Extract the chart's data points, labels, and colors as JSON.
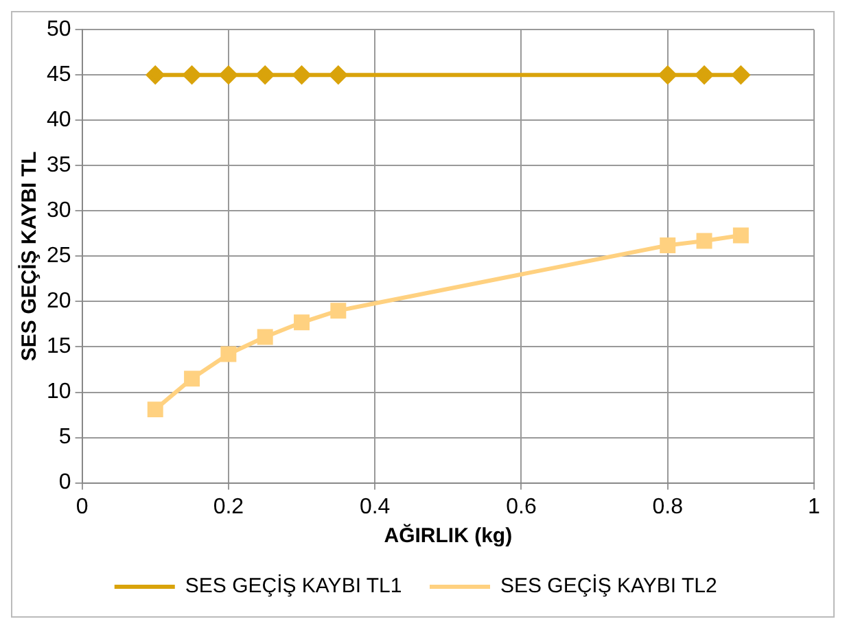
{
  "chart_data": {
    "type": "line",
    "xlabel": "AĞIRLIK (kg)",
    "ylabel": "SES GEÇİŞ KAYBI TL",
    "x": [
      0.1,
      0.15,
      0.2,
      0.25,
      0.3,
      0.35,
      0.8,
      0.85,
      0.9
    ],
    "series": [
      {
        "name": "SES GEÇİŞ KAYBI TL1",
        "color": "#d9a30b",
        "marker": "diamond",
        "values": [
          45,
          45,
          45,
          45,
          45,
          45,
          45,
          45,
          45
        ]
      },
      {
        "name": "SES GEÇİŞ KAYBI TL2",
        "color": "#ffd180",
        "marker": "square",
        "values": [
          8.1,
          11.5,
          14.2,
          16.1,
          17.7,
          19.0,
          26.2,
          26.7,
          27.3
        ]
      }
    ],
    "xlim": [
      0,
      1
    ],
    "xticks": [
      0,
      0.2,
      0.4,
      0.6,
      0.8,
      1
    ],
    "ylim": [
      0,
      50
    ],
    "yticks": [
      0,
      5,
      10,
      15,
      20,
      25,
      30,
      35,
      40,
      45,
      50
    ],
    "grid": true,
    "legend": "bottom",
    "line_style": "solid"
  }
}
